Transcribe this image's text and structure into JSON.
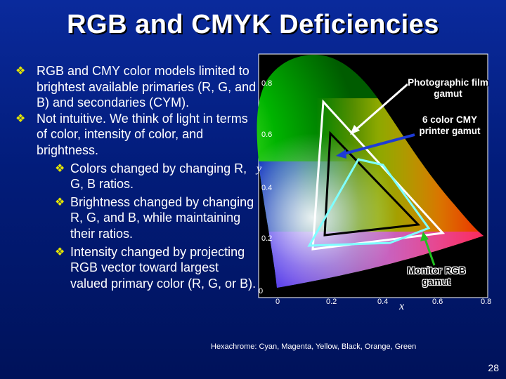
{
  "title": "RGB and CMYK Deficiencies",
  "bullets": [
    {
      "level": 1,
      "text": "RGB and CMY color models limited to  brightest available primaries (R, G, and B) and secondaries (CYM)."
    },
    {
      "level": 1,
      "text": "Not intuitive. We think of light in terms of color, intensity of color, and brightness."
    },
    {
      "level": 2,
      "text": "Colors changed by changing R, G, B ratios."
    },
    {
      "level": 2,
      "text": "Brightness changed by changing R, G, and B, while maintaining their ratios."
    },
    {
      "level": 2,
      "text": "Intensity changed by projecting  RGB vector toward largest valued primary color (R, G, or B)."
    }
  ],
  "bullet_glyph": "❖",
  "diagram": {
    "y_ticks": [
      "0.8",
      "0.6",
      "0.4",
      "0.2",
      "0"
    ],
    "x_ticks": [
      "0",
      "0.2",
      "0.4",
      "0.6",
      "0.8"
    ],
    "y_label": "y",
    "x_label": "x",
    "annotations": {
      "film": "Photographic film gamut",
      "cmy": "6 color CMY printer gamut",
      "rgb": "Monitor RGB gamut"
    },
    "caption": "Hexachrome: Cyan, Magenta, Yellow, Black, Orange, Green",
    "colors": {
      "film_outline": "#ffffff",
      "cmy_outline": "#000000",
      "rgb_outline": "#7fffff",
      "arrow_film": "#ffffff",
      "arrow_cmy": "#1d3bd6",
      "arrow_rgb": "#20c020"
    }
  },
  "page_number": "28"
}
